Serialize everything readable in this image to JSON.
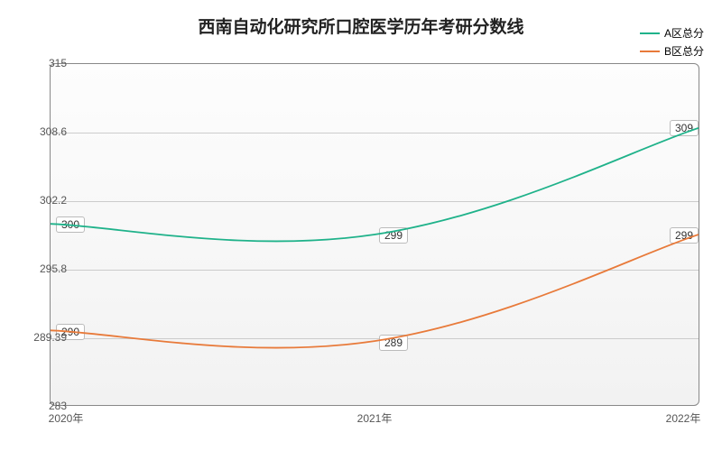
{
  "chart": {
    "type": "line",
    "title": "西南自动化研究所口腔医学历年考研分数线",
    "title_fontsize": 19,
    "background_gradient": [
      "#fdfdfd",
      "#f2f2f2"
    ],
    "border_color": "#888",
    "grid_color": "#cccccc",
    "x": {
      "categories": [
        "2020年",
        "2021年",
        "2022年"
      ],
      "label_fontsize": 12,
      "label_color": "#555555"
    },
    "y": {
      "ticks": [
        283,
        289.39,
        295.8,
        302.2,
        308.6,
        315
      ],
      "min": 283,
      "max": 315,
      "label_fontsize": 12,
      "label_color": "#555555"
    },
    "series": [
      {
        "name": "A区总分",
        "color": "#1fb28a",
        "line_width": 1.8,
        "values": [
          300,
          299,
          309
        ],
        "labels": [
          "300",
          "299",
          "309"
        ]
      },
      {
        "name": "B区总分",
        "color": "#e87a3a",
        "line_width": 1.8,
        "values": [
          290,
          289,
          299
        ],
        "labels": [
          "290",
          "289",
          "299"
        ]
      }
    ],
    "legend": {
      "position": "top-right",
      "fontsize": 12
    }
  }
}
